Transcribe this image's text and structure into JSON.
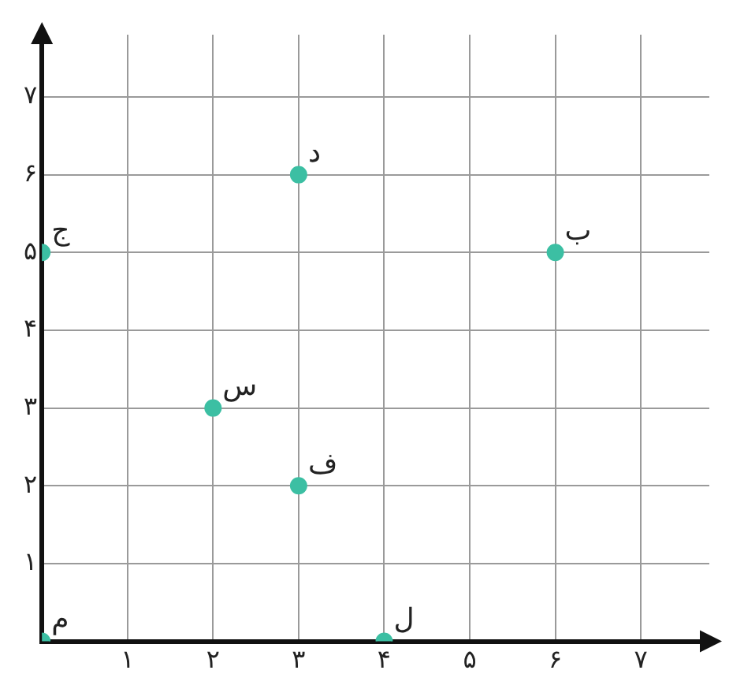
{
  "chart_data": {
    "type": "scatter",
    "x": [
      0,
      0,
      2,
      3,
      3,
      6,
      4
    ],
    "values": [
      0,
      5,
      3,
      2,
      6,
      5,
      0
    ],
    "color": "#3cbfa3",
    "marker": "circle",
    "grid": true,
    "xlim": [
      0,
      7.8
    ],
    "ylim": [
      0,
      7.8
    ],
    "xticks": [
      {
        "value": 1,
        "label": "۱"
      },
      {
        "value": 2,
        "label": "۲"
      },
      {
        "value": 3,
        "label": "۳"
      },
      {
        "value": 4,
        "label": "۴"
      },
      {
        "value": 5,
        "label": "۵"
      },
      {
        "value": 6,
        "label": "۶"
      },
      {
        "value": 7,
        "label": "۷"
      }
    ],
    "yticks": [
      {
        "value": 1,
        "label": "۱"
      },
      {
        "value": 2,
        "label": "۲"
      },
      {
        "value": 3,
        "label": "۳"
      },
      {
        "value": 4,
        "label": "۴"
      },
      {
        "value": 5,
        "label": "۵"
      },
      {
        "value": 6,
        "label": "۶"
      },
      {
        "value": 7,
        "label": "۷"
      }
    ],
    "annotations": [
      {
        "text": "م",
        "x": 0,
        "y": 0
      },
      {
        "text": "ج",
        "x": 0,
        "y": 5
      },
      {
        "text": "س",
        "x": 2,
        "y": 3
      },
      {
        "text": "ف",
        "x": 3,
        "y": 2
      },
      {
        "text": "د",
        "x": 3,
        "y": 6
      },
      {
        "text": "ب",
        "x": 6,
        "y": 5
      },
      {
        "text": "ل",
        "x": 4,
        "y": 0
      }
    ]
  }
}
